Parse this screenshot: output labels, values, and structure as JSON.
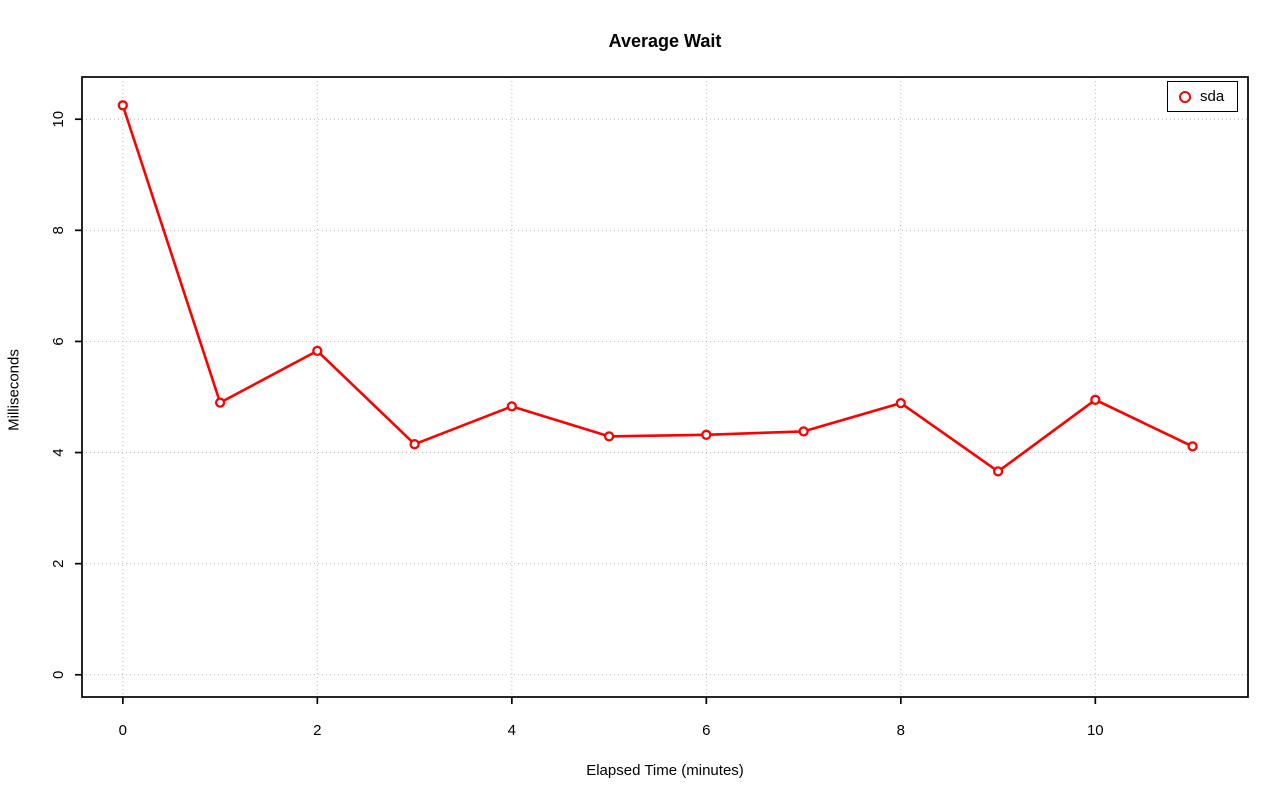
{
  "figure": {
    "background": "#ffffff"
  },
  "chart_data": {
    "type": "line",
    "title": "Average Wait",
    "xlabel": "Elapsed Time (minutes)",
    "ylabel": "Milliseconds",
    "x": [
      0,
      1,
      2,
      3,
      4,
      5,
      6,
      7,
      8,
      9,
      10,
      11
    ],
    "series": [
      {
        "name": "sda",
        "color": "#ff0000",
        "marker": "open-circle",
        "values": [
          10.25,
          4.9,
          5.83,
          4.15,
          4.83,
          4.29,
          4.32,
          4.38,
          4.89,
          3.66,
          4.95,
          4.11
        ]
      }
    ],
    "xticks": [
      0,
      2,
      4,
      6,
      8,
      10
    ],
    "yticks": [
      0,
      2,
      4,
      6,
      8,
      10
    ],
    "xlim": [
      -0.42,
      11.57
    ],
    "ylim": [
      -0.4,
      10.76
    ],
    "grid": true,
    "grid_color": "#bdbdbd",
    "grid_style": "dotted",
    "axis_color": "#000000",
    "legend_position": "top-right"
  }
}
